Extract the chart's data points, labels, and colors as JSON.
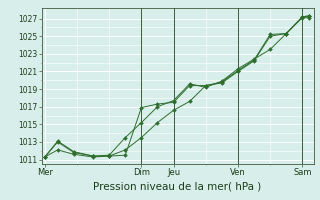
{
  "bg_color": "#d8eeea",
  "grid_color": "#ffffff",
  "line_color": "#2d6e2d",
  "marker_color": "#2d6e2d",
  "xlabel": "Pression niveau de la mer( hPa )",
  "xlabel_fontsize": 7.5,
  "ylim": [
    1010.5,
    1028.2
  ],
  "yticks": [
    1011,
    1013,
    1015,
    1017,
    1019,
    1021,
    1023,
    1025,
    1027
  ],
  "xtick_labels": [
    "Mer",
    "",
    "Dim",
    "Jeu",
    "",
    "Ven",
    "",
    "Sam"
  ],
  "xtick_positions": [
    0,
    1.5,
    3,
    4,
    5,
    6,
    7,
    8
  ],
  "line1_x": [
    0,
    0.4,
    0.9,
    1.5,
    2.0,
    2.5,
    3.0,
    3.5,
    4.0,
    4.5,
    5.0,
    5.5,
    6.0,
    6.5,
    7.0,
    7.5,
    8.0,
    8.2
  ],
  "line1_y": [
    1011.3,
    1013.0,
    1011.8,
    1011.4,
    1011.4,
    1011.5,
    1016.9,
    1017.3,
    1017.5,
    1019.4,
    1019.4,
    1019.7,
    1021.0,
    1022.2,
    1025.0,
    1025.3,
    1027.1,
    1027.1
  ],
  "line2_x": [
    0,
    0.4,
    0.9,
    1.5,
    2.0,
    2.5,
    3.0,
    3.5,
    4.0,
    4.5,
    5.0,
    5.5,
    6.0,
    6.5,
    7.0,
    7.5,
    8.0,
    8.2
  ],
  "line2_y": [
    1011.3,
    1013.1,
    1011.9,
    1011.4,
    1011.5,
    1013.5,
    1015.2,
    1017.0,
    1017.7,
    1019.6,
    1019.2,
    1019.9,
    1021.3,
    1022.4,
    1023.5,
    1025.3,
    1027.2,
    1027.3
  ],
  "line3_x": [
    0,
    0.4,
    0.9,
    1.5,
    2.0,
    2.5,
    3.0,
    3.5,
    4.0,
    4.5,
    5.0,
    5.5,
    6.0,
    6.5,
    7.0,
    7.5,
    8.0,
    8.2
  ],
  "line3_y": [
    1011.3,
    1012.1,
    1011.6,
    1011.3,
    1011.4,
    1012.1,
    1013.5,
    1015.2,
    1016.6,
    1017.6,
    1019.4,
    1019.8,
    1021.1,
    1022.3,
    1025.2,
    1025.3,
    1027.2,
    1027.3
  ],
  "vline_positions": [
    3,
    4,
    6,
    8
  ],
  "vline_color": "#3d5c3d",
  "ytick_fontsize": 5.5,
  "xtick_fontsize": 6.0,
  "n_minor_x": 6,
  "n_minor_y": 1
}
